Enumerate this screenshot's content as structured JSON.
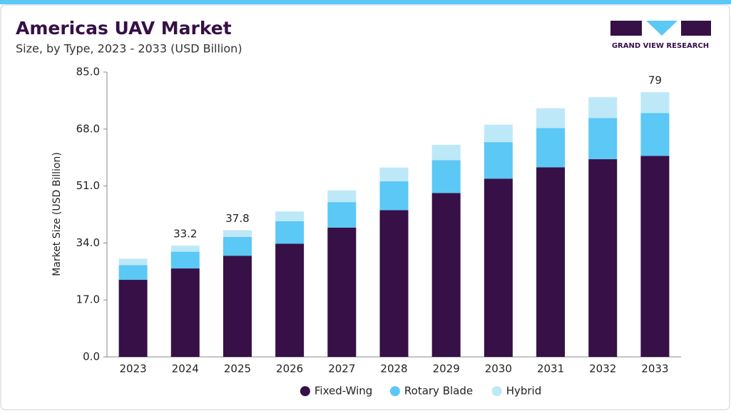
{
  "chart_data": {
    "type": "stacked_bar",
    "title": "Americas UAV Market",
    "subtitle": "Size, by Type, 2023 - 2033 (USD Billion)",
    "logo": "GRAND VIEW RESEARCH",
    "y_label": "Market Size (USD Billion)",
    "categories": [
      "2023",
      "2024",
      "2025",
      "2026",
      "2027",
      "2028",
      "2029",
      "2030",
      "2031",
      "2032",
      "2033"
    ],
    "series": [
      {
        "name": "Fixed-Wing",
        "color": "#361046",
        "values": [
          23.0,
          26.4,
          30.2,
          33.8,
          38.6,
          43.8,
          48.9,
          53.2,
          56.6,
          59.0,
          60.0
        ]
      },
      {
        "name": "Rotary Blade",
        "color": "#5bc8f5",
        "values": [
          4.4,
          5.0,
          5.6,
          6.7,
          7.6,
          8.6,
          9.8,
          10.9,
          11.7,
          12.3,
          12.8
        ]
      },
      {
        "name": "Hybrid",
        "color": "#bde8f8",
        "values": [
          1.9,
          1.8,
          2.0,
          2.9,
          3.5,
          4.1,
          4.6,
          5.2,
          5.9,
          6.2,
          6.2
        ]
      }
    ],
    "totals": [
      null,
      33.2,
      37.8,
      null,
      null,
      null,
      null,
      null,
      null,
      null,
      79.0
    ],
    "ylim": [
      0,
      85
    ],
    "yticks": [
      {
        "value": 0,
        "label": "0.0"
      },
      {
        "value": 17,
        "label": "17.0"
      },
      {
        "value": 34,
        "label": "34.0"
      },
      {
        "value": 51,
        "label": "51.0"
      },
      {
        "value": 68,
        "label": "68.0"
      },
      {
        "value": 85,
        "label": "85.0"
      }
    ],
    "legend": "bottom"
  }
}
